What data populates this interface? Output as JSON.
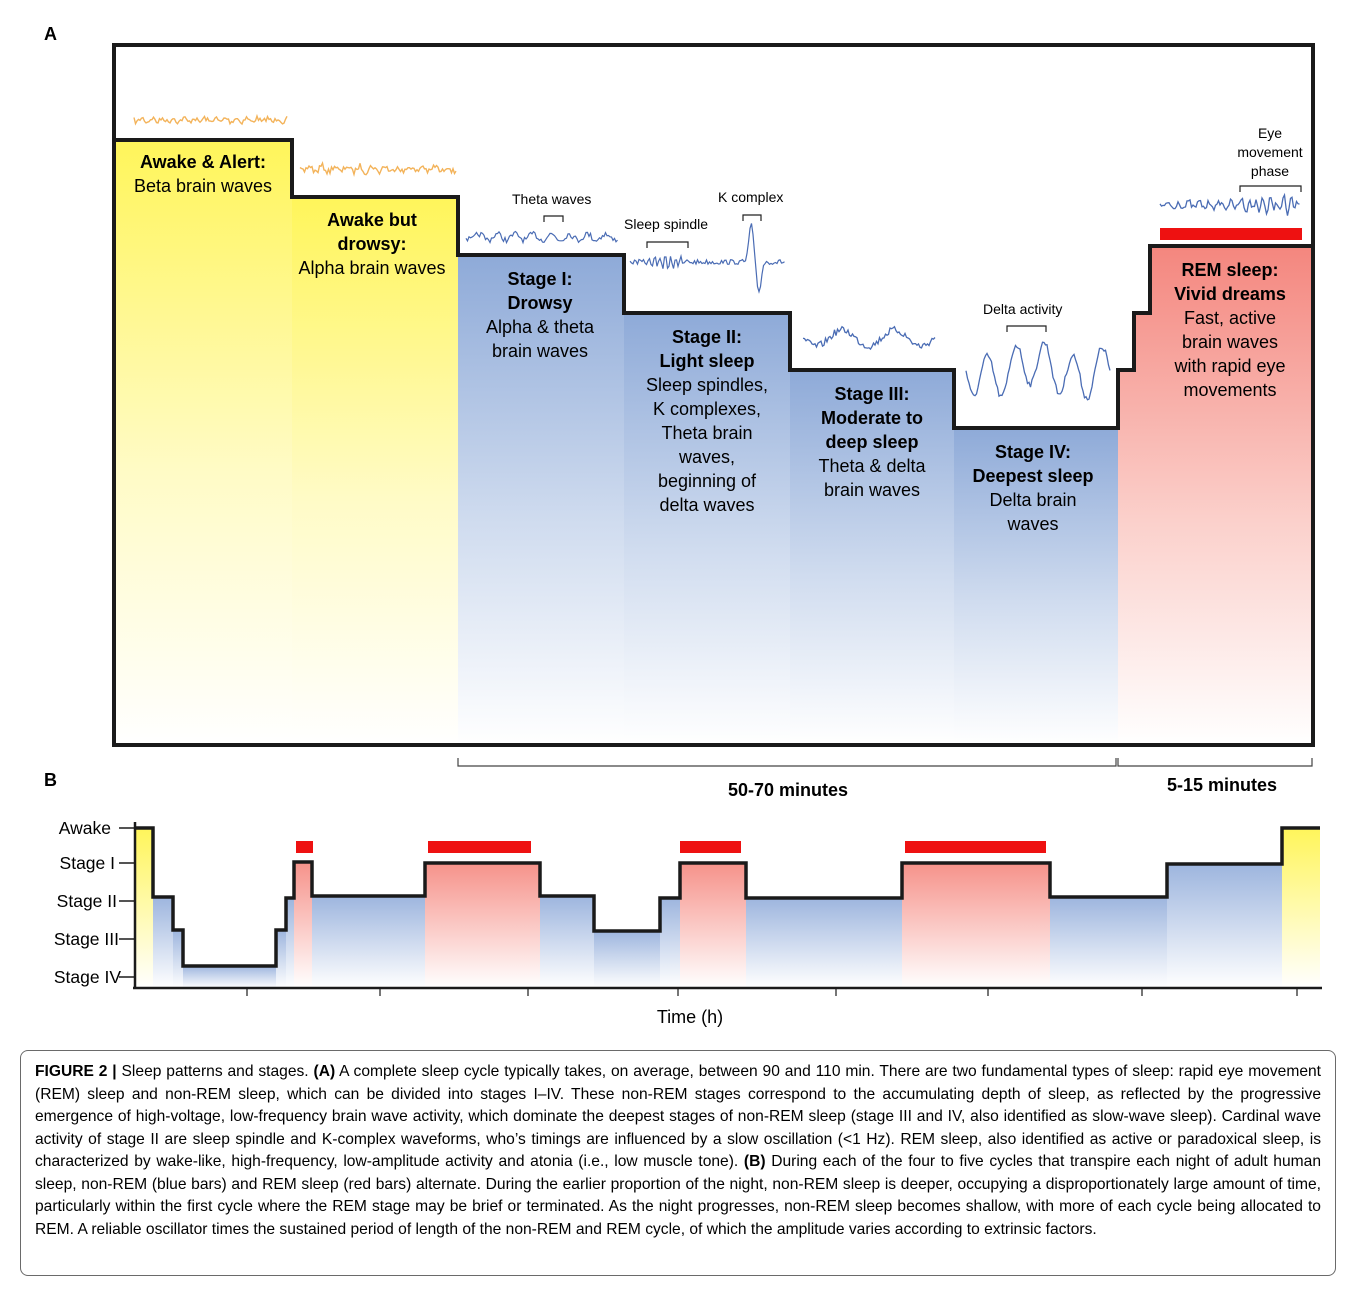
{
  "panel_a": {
    "label": "A",
    "stages": [
      {
        "id": "awake",
        "lines": [
          {
            "text": "Awake & Alert:",
            "bold": true
          },
          {
            "text": "Beta brain waves",
            "bold": false
          }
        ]
      },
      {
        "id": "drowsy",
        "lines": [
          {
            "text": "Awake but",
            "bold": true
          },
          {
            "text": "drowsy:",
            "bold": true
          },
          {
            "text": "Alpha brain waves",
            "bold": false
          }
        ]
      },
      {
        "id": "stage1",
        "lines": [
          {
            "text": "Stage I:",
            "bold": true
          },
          {
            "text": "Drowsy",
            "bold": true
          },
          {
            "text": "Alpha & theta",
            "bold": false
          },
          {
            "text": "brain waves",
            "bold": false
          }
        ]
      },
      {
        "id": "stage2",
        "lines": [
          {
            "text": "Stage II:",
            "bold": true
          },
          {
            "text": "Light sleep",
            "bold": true
          },
          {
            "text": "Sleep spindles,",
            "bold": false
          },
          {
            "text": "K complexes,",
            "bold": false
          },
          {
            "text": "Theta brain",
            "bold": false
          },
          {
            "text": "waves,",
            "bold": false
          },
          {
            "text": "beginning of",
            "bold": false
          },
          {
            "text": "delta waves",
            "bold": false
          }
        ]
      },
      {
        "id": "stage3",
        "lines": [
          {
            "text": "Stage III:",
            "bold": true
          },
          {
            "text": "Moderate to",
            "bold": true
          },
          {
            "text": "deep sleep",
            "bold": true
          },
          {
            "text": "Theta & delta",
            "bold": false
          },
          {
            "text": "brain waves",
            "bold": false
          }
        ]
      },
      {
        "id": "stage4",
        "lines": [
          {
            "text": "Stage IV:",
            "bold": true
          },
          {
            "text": "Deepest sleep",
            "bold": true
          },
          {
            "text": "Delta brain",
            "bold": false
          },
          {
            "text": "waves",
            "bold": false
          }
        ]
      },
      {
        "id": "rem",
        "lines": [
          {
            "text": "REM sleep:",
            "bold": true
          },
          {
            "text": "Vivid dreams",
            "bold": true
          },
          {
            "text": "Fast, active",
            "bold": false
          },
          {
            "text": "brain waves",
            "bold": false
          },
          {
            "text": "with rapid eye",
            "bold": false
          },
          {
            "text": "movements",
            "bold": false
          }
        ]
      }
    ],
    "annotations": {
      "theta": "Theta waves",
      "spindle": "Sleep spindle",
      "kcomplex": "K complex",
      "delta": "Delta activity",
      "eye": [
        "Eye",
        "movement",
        "phase"
      ]
    },
    "durations": {
      "nrem": "50-70 minutes",
      "rem": "5-15 minutes"
    },
    "colors": {
      "awake": "#fff55a",
      "nrem": "#8eaad8",
      "rem": "#f4867e",
      "rem_bar": "#ee1111",
      "wave_awake": "#f3b35a",
      "wave_sleep": "#4a6cb4"
    }
  },
  "panel_b": {
    "label": "B",
    "y_labels": [
      "Awake",
      "Stage I",
      "Stage II",
      "Stage III",
      "Stage IV"
    ],
    "x_label": "Time (h)"
  },
  "caption": {
    "figure_label": "FIGURE 2 |",
    "title": " Sleep patterns and stages. ",
    "a_label": "(A)",
    "a_text": " A complete sleep cycle typically takes, on average, between 90 and 110 min. There are two fundamental types of sleep: rapid eye movement (REM) sleep and non-REM sleep, which can be divided into stages I–IV. These non-REM stages correspond to the accumulating depth of sleep, as reflected by the progressive emergence of high-voltage, low-frequency brain wave activity, which dominate the deepest stages of non-REM sleep (stage III and IV, also identified as slow-wave sleep). Cardinal wave activity of stage II are sleep spindle and K-complex waveforms, who’s timings are influenced by a slow oscillation (<1 Hz). REM sleep, also identified as active or paradoxical sleep, is characterized by wake-like, high-frequency, low-amplitude activity and atonia (i.e., low muscle tone). ",
    "b_label": "(B)",
    "b_text": " During each of the four to five cycles that transpire each night of adult human sleep, non-REM (blue bars) and REM sleep (red bars) alternate. During the earlier proportion of the night, non-REM sleep is deeper, occupying a disproportionately large amount of time, particularly within the first cycle where the REM stage may be brief or terminated. As the night progresses, non-REM sleep becomes shallow, with more of each cycle being allocated to REM. A reliable oscillator times the sustained period of length of the non-REM and REM cycle, of which the amplitude varies according to extrinsic factors."
  }
}
